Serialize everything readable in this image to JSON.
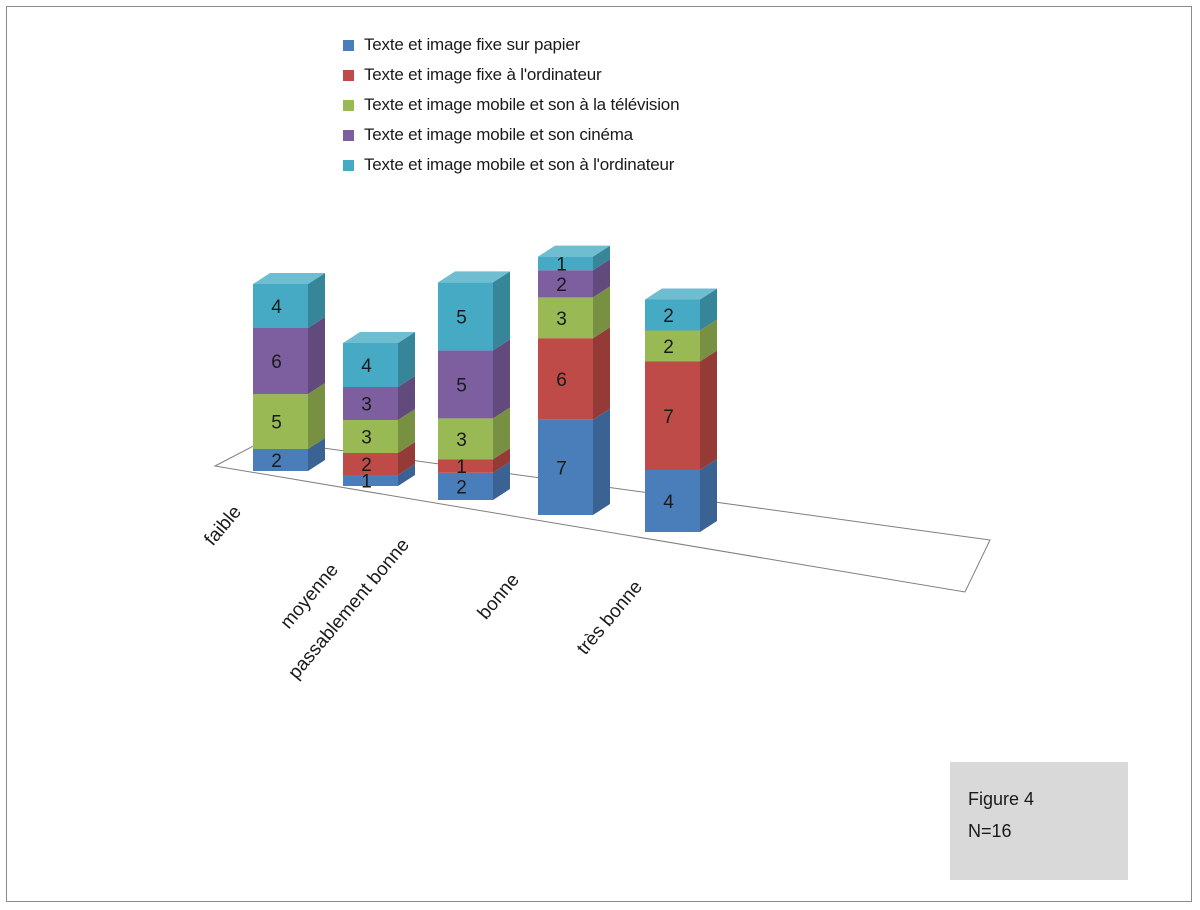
{
  "chart_data": {
    "type": "bar",
    "stacked": true,
    "three_d": true,
    "categories": [
      "faible",
      "moyenne",
      "passablement bonne",
      "bonne",
      "très bonne"
    ],
    "series": [
      {
        "name": "Texte et image fixe sur papier",
        "color": "#4a7ebb",
        "values": [
          2,
          1,
          2,
          7,
          4
        ]
      },
      {
        "name": "Texte et image fixe à l'ordinateur",
        "color": "#be4b48",
        "values": [
          null,
          2,
          1,
          6,
          7
        ]
      },
      {
        "name": "Texte et image mobile et son à la télévision",
        "color": "#98b954",
        "values": [
          5,
          3,
          3,
          3,
          2
        ]
      },
      {
        "name": "Texte et image mobile et son cinéma",
        "color": "#7d5fa0",
        "values": [
          6,
          3,
          5,
          2,
          null
        ]
      },
      {
        "name": "Texte et image mobile et son à l'ordinateur",
        "color": "#46aac4",
        "values": [
          4,
          4,
          5,
          1,
          2
        ]
      }
    ],
    "legend_position": "top",
    "grid": false
  },
  "annotation": {
    "line1": "Figure 4",
    "line2": "N=16"
  }
}
